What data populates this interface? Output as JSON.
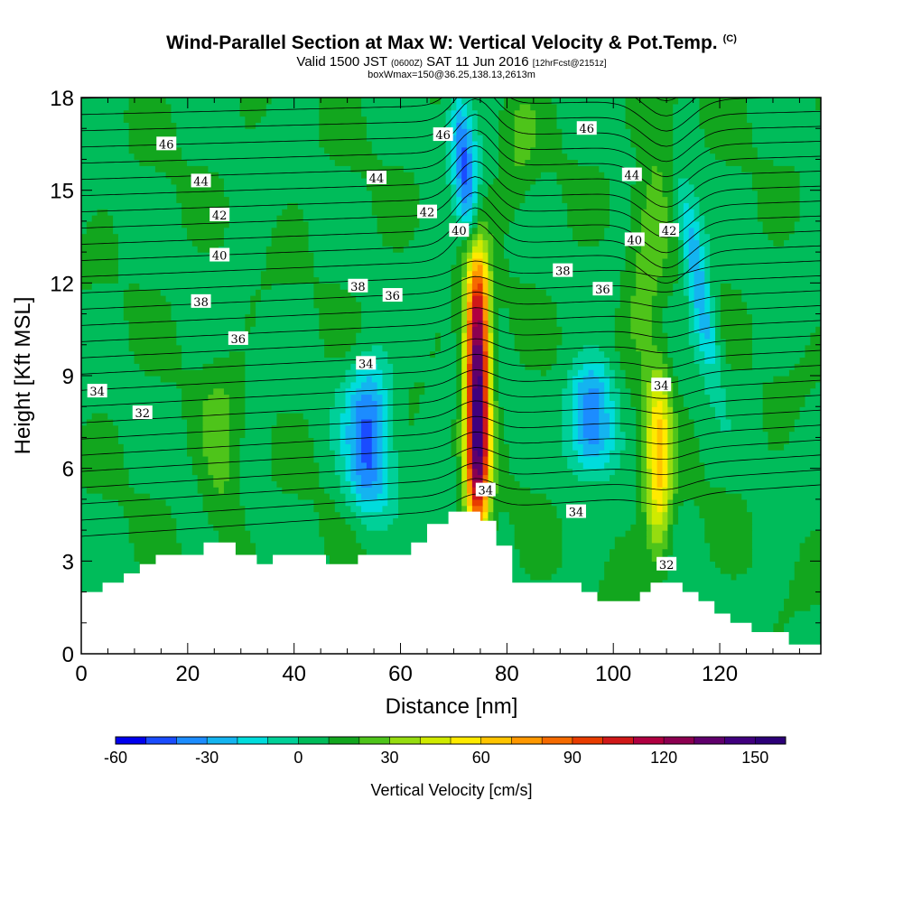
{
  "title": "Wind-Parallel Section at Max W: Vertical Velocity & Pot.Temp.",
  "title_tag": "(C)",
  "subtitle_prefix": "Valid 1500 JST",
  "subtitle_utc": "(0600Z)",
  "subtitle_date": "SAT 11 Jun 2016",
  "subtitle_fcst": "[12hrFcst@2151z]",
  "box_info": "boxWmax=150@36.25,138.13,2613m",
  "chart_data": {
    "type": "heatmap",
    "xlabel": "Distance [nm]",
    "ylabel": "Height [Kft MSL]",
    "xlim": [
      0,
      139
    ],
    "ylim": [
      0,
      18
    ],
    "x_ticks": [
      "0",
      "20",
      "40",
      "60",
      "80",
      "100",
      "120"
    ],
    "y_ticks": [
      "0",
      "3",
      "6",
      "9",
      "12",
      "15",
      "18"
    ],
    "colorbar": {
      "label": "Vertical Velocity [cm/s]",
      "min": -60,
      "max": 160,
      "step": 10,
      "tick_labels": [
        "-60",
        "-30",
        "0",
        "30",
        "60",
        "90",
        "120",
        "150"
      ],
      "colors": [
        "#0000ee",
        "#1a4cff",
        "#1c8cff",
        "#14b4f0",
        "#00dcdc",
        "#00d098",
        "#00bc5a",
        "#12a61e",
        "#4ec41a",
        "#96dc10",
        "#d0ea00",
        "#ffea00",
        "#ffc400",
        "#ff9800",
        "#f56a00",
        "#e83c00",
        "#d01818",
        "#b00040",
        "#8c0050",
        "#60006c",
        "#40007e",
        "#2c0078"
      ]
    },
    "updrafts": [
      {
        "x": 74.5,
        "y_bottom": 3.8,
        "y_top": 12.8,
        "max": 150
      },
      {
        "x": 108.5,
        "y_bottom": 3.2,
        "y_top": 9.5,
        "max": 60
      },
      {
        "x": 107,
        "y_bottom": 9.0,
        "y_top": 18.0,
        "max": 25
      },
      {
        "x": 26,
        "y_bottom": 4.0,
        "y_top": 9.0,
        "max": 25
      },
      {
        "x": 82,
        "y_bottom": 14.0,
        "y_top": 18.0,
        "max": 20
      }
    ],
    "downdrafts": [
      {
        "x": 54,
        "y_bottom": 4.5,
        "y_top": 9.5,
        "min": -40
      },
      {
        "x": 96,
        "y_bottom": 6.0,
        "y_top": 9.5,
        "min": -40
      },
      {
        "x": 72,
        "y_bottom": 13.5,
        "y_top": 18.0,
        "min": -40
      },
      {
        "x": 116,
        "y_bottom": 9.0,
        "y_top": 15.0,
        "min": -30
      }
    ],
    "terrain": [
      {
        "x": 0,
        "h": 2.0
      },
      {
        "x": 4,
        "h": 2.0
      },
      {
        "x": 4,
        "h": 2.3
      },
      {
        "x": 8,
        "h": 2.3
      },
      {
        "x": 8,
        "h": 2.6
      },
      {
        "x": 11,
        "h": 2.6
      },
      {
        "x": 11,
        "h": 2.9
      },
      {
        "x": 14,
        "h": 2.9
      },
      {
        "x": 14,
        "h": 3.2
      },
      {
        "x": 23,
        "h": 3.2
      },
      {
        "x": 23,
        "h": 3.6
      },
      {
        "x": 29,
        "h": 3.6
      },
      {
        "x": 29,
        "h": 3.2
      },
      {
        "x": 33,
        "h": 3.2
      },
      {
        "x": 33,
        "h": 2.9
      },
      {
        "x": 36,
        "h": 2.9
      },
      {
        "x": 36,
        "h": 3.2
      },
      {
        "x": 46,
        "h": 3.2
      },
      {
        "x": 46,
        "h": 2.9
      },
      {
        "x": 52,
        "h": 2.9
      },
      {
        "x": 52,
        "h": 3.2
      },
      {
        "x": 62,
        "h": 3.2
      },
      {
        "x": 62,
        "h": 3.6
      },
      {
        "x": 65,
        "h": 3.6
      },
      {
        "x": 65,
        "h": 4.2
      },
      {
        "x": 69,
        "h": 4.2
      },
      {
        "x": 69,
        "h": 4.6
      },
      {
        "x": 75,
        "h": 4.6
      },
      {
        "x": 75,
        "h": 4.3
      },
      {
        "x": 78,
        "h": 4.3
      },
      {
        "x": 78,
        "h": 3.5
      },
      {
        "x": 81,
        "h": 3.5
      },
      {
        "x": 81,
        "h": 2.3
      },
      {
        "x": 94,
        "h": 2.3
      },
      {
        "x": 94,
        "h": 2.0
      },
      {
        "x": 97,
        "h": 2.0
      },
      {
        "x": 97,
        "h": 1.7
      },
      {
        "x": 105,
        "h": 1.7
      },
      {
        "x": 105,
        "h": 2.0
      },
      {
        "x": 107,
        "h": 2.0
      },
      {
        "x": 107,
        "h": 2.3
      },
      {
        "x": 113,
        "h": 2.3
      },
      {
        "x": 113,
        "h": 2.0
      },
      {
        "x": 116,
        "h": 2.0
      },
      {
        "x": 116,
        "h": 1.7
      },
      {
        "x": 119,
        "h": 1.7
      },
      {
        "x": 119,
        "h": 1.3
      },
      {
        "x": 122,
        "h": 1.3
      },
      {
        "x": 122,
        "h": 1.0
      },
      {
        "x": 126,
        "h": 1.0
      },
      {
        "x": 126,
        "h": 0.7
      },
      {
        "x": 133,
        "h": 0.7
      },
      {
        "x": 133,
        "h": 0.3
      },
      {
        "x": 139,
        "h": 0.3
      }
    ],
    "theta_labels": [
      {
        "text": "46",
        "x": 16,
        "y": 16.5
      },
      {
        "text": "44",
        "x": 22.5,
        "y": 15.3
      },
      {
        "text": "42",
        "x": 26,
        "y": 14.2
      },
      {
        "text": "40",
        "x": 26,
        "y": 12.9
      },
      {
        "text": "38",
        "x": 22.5,
        "y": 11.4
      },
      {
        "text": "36",
        "x": 29.5,
        "y": 10.2
      },
      {
        "text": "34",
        "x": 3,
        "y": 8.5
      },
      {
        "text": "32",
        "x": 11.5,
        "y": 7.8
      },
      {
        "text": "44",
        "x": 55.5,
        "y": 15.4
      },
      {
        "text": "46",
        "x": 68,
        "y": 16.8
      },
      {
        "text": "42",
        "x": 65,
        "y": 14.3
      },
      {
        "text": "40",
        "x": 71,
        "y": 13.7
      },
      {
        "text": "38",
        "x": 52,
        "y": 11.9
      },
      {
        "text": "36",
        "x": 58.5,
        "y": 11.6
      },
      {
        "text": "34",
        "x": 53.5,
        "y": 9.4
      },
      {
        "text": "34",
        "x": 76,
        "y": 5.3
      },
      {
        "text": "46",
        "x": 95,
        "y": 17.0
      },
      {
        "text": "44",
        "x": 103.5,
        "y": 15.5
      },
      {
        "text": "40",
        "x": 104,
        "y": 13.4
      },
      {
        "text": "42",
        "x": 110.5,
        "y": 13.7
      },
      {
        "text": "38",
        "x": 90.5,
        "y": 12.4
      },
      {
        "text": "36",
        "x": 98,
        "y": 11.8
      },
      {
        "text": "34",
        "x": 109,
        "y": 8.7
      },
      {
        "text": "34",
        "x": 93,
        "y": 4.6
      },
      {
        "text": "32",
        "x": 110,
        "y": 2.9
      }
    ]
  }
}
